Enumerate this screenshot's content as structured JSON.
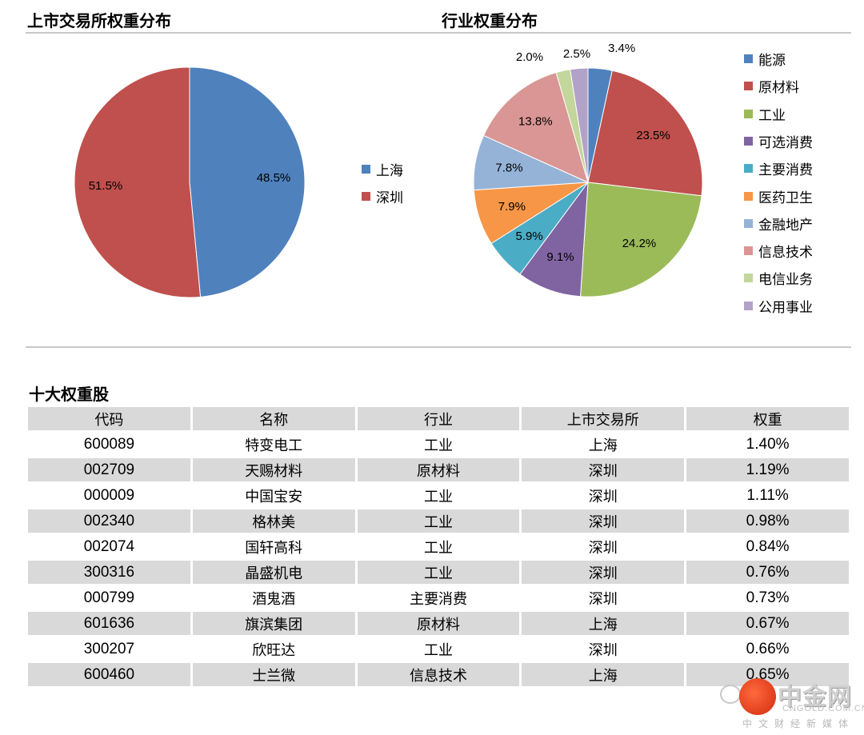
{
  "left_title": "上市交易所权重分布",
  "right_title": "行业权重分布",
  "table_title": "十大权重股",
  "chart_data": [
    {
      "type": "pie",
      "title": "上市交易所权重分布",
      "labels": [
        "上海",
        "深圳"
      ],
      "values": [
        48.5,
        51.5
      ],
      "value_labels": [
        "48.5%",
        "51.5%"
      ],
      "colors": [
        "#4f81bd",
        "#c0504d"
      ],
      "legend_position": "right"
    },
    {
      "type": "pie",
      "title": "行业权重分布",
      "labels": [
        "能源",
        "原材料",
        "工业",
        "可选消费",
        "主要消费",
        "医药卫生",
        "金融地产",
        "信息技术",
        "电信业务",
        "公用事业"
      ],
      "values": [
        3.4,
        23.5,
        24.2,
        9.1,
        5.9,
        7.9,
        7.8,
        13.8,
        2.0,
        2.5
      ],
      "value_labels": [
        "3.4%",
        "23.5%",
        "24.2%",
        "9.1%",
        "5.9%",
        "7.9%",
        "7.8%",
        "13.8%",
        "2.0%",
        "2.5%"
      ],
      "colors": [
        "#4f81bd",
        "#c0504d",
        "#9bbb59",
        "#8064a2",
        "#4bacc6",
        "#f79646",
        "#95b3d7",
        "#d99694",
        "#c3d69b",
        "#b3a2c7"
      ],
      "legend_position": "right"
    }
  ],
  "table": {
    "headers": [
      "代码",
      "名称",
      "行业",
      "上市交易所",
      "权重"
    ],
    "rows": [
      [
        "600089",
        "特变电工",
        "工业",
        "上海",
        "1.40%"
      ],
      [
        "002709",
        "天赐材料",
        "原材料",
        "深圳",
        "1.19%"
      ],
      [
        "000009",
        "中国宝安",
        "工业",
        "深圳",
        "1.11%"
      ],
      [
        "002340",
        "格林美",
        "工业",
        "深圳",
        "0.98%"
      ],
      [
        "002074",
        "国轩高科",
        "工业",
        "深圳",
        "0.84%"
      ],
      [
        "300316",
        "晶盛机电",
        "工业",
        "深圳",
        "0.76%"
      ],
      [
        "000799",
        "酒鬼酒",
        "主要消费",
        "深圳",
        "0.73%"
      ],
      [
        "601636",
        "旗滨集团",
        "原材料",
        "上海",
        "0.67%"
      ],
      [
        "300207",
        "欣旺达",
        "工业",
        "深圳",
        "0.66%"
      ],
      [
        "600460",
        "士兰微",
        "信息技术",
        "上海",
        "0.65%"
      ]
    ]
  },
  "watermark": {
    "brand": "中金网",
    "url": "CNGOLD.COM.CN",
    "sub": "中文财经新媒体"
  }
}
